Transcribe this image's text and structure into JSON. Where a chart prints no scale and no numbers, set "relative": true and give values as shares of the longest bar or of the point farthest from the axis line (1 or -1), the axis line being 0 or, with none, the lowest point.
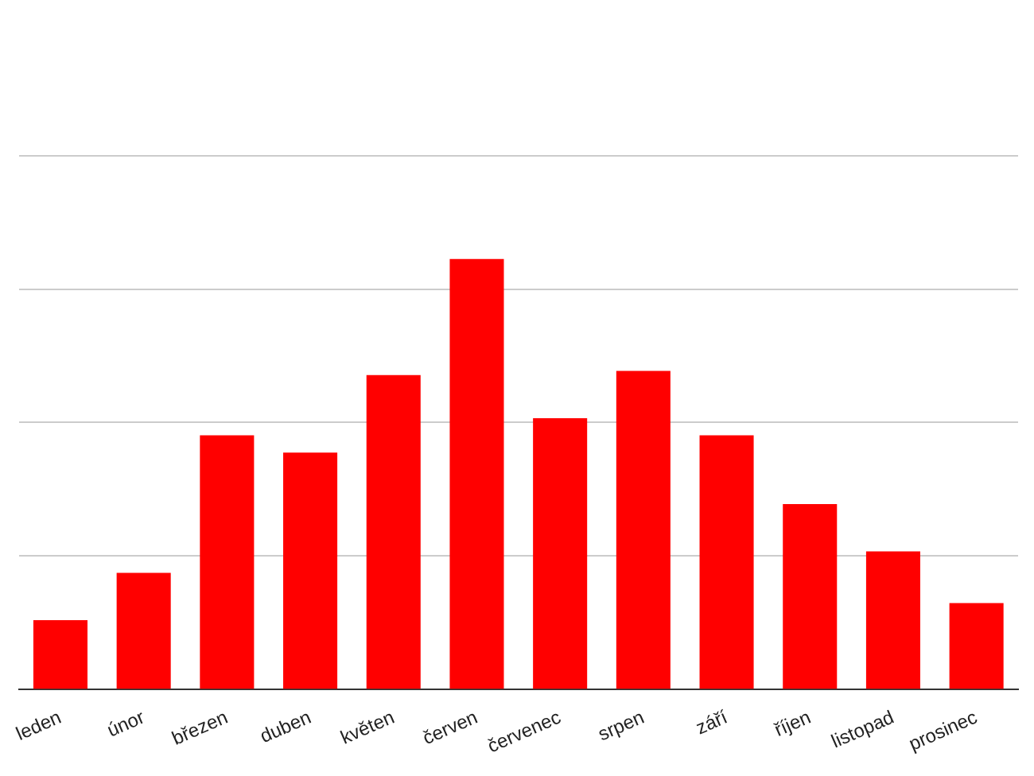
{
  "chart_data": {
    "type": "bar",
    "relative": true,
    "categories": [
      "leden",
      "únor",
      "březen",
      "duben",
      "květen",
      "červen",
      "červenec",
      "srpen",
      "září",
      "říjen",
      "listopad",
      "prosinec"
    ],
    "series": [
      {
        "color": "#ff0000",
        "values": [
          0.16,
          0.27,
          0.59,
          0.55,
          0.73,
          1,
          0.63,
          0.74,
          0.59,
          0.43,
          0.32,
          0.2
        ]
      }
    ],
    "grid": "y"
  }
}
